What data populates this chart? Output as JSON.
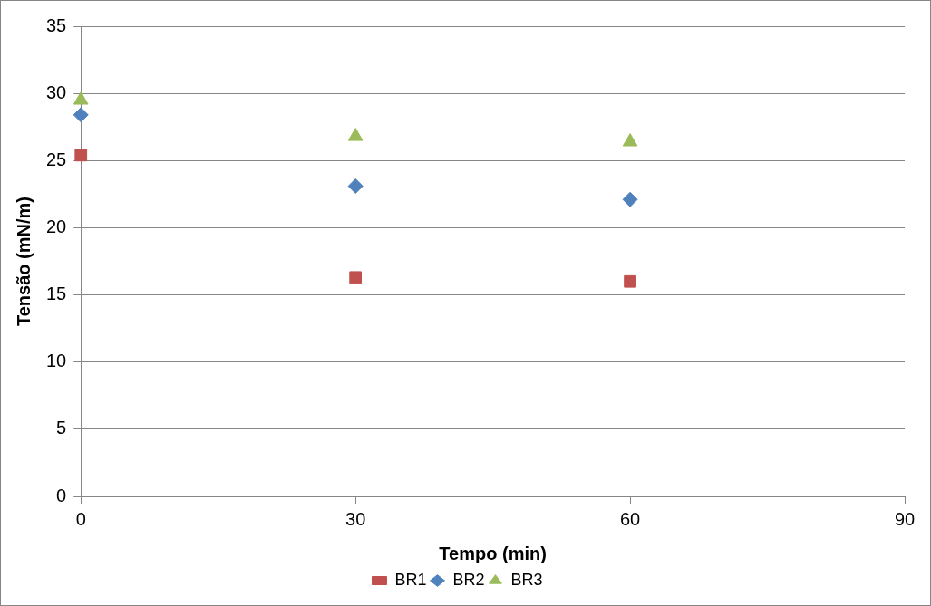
{
  "chart_data": {
    "type": "scatter",
    "xlabel": "Tempo (min)",
    "ylabel": "Tensão (mN/m)",
    "x": [
      0,
      30,
      60
    ],
    "series": [
      {
        "name": "BR1",
        "color": "#c0504d",
        "marker": "square",
        "values": [
          25.4,
          16.3,
          16.0
        ]
      },
      {
        "name": "BR2",
        "color": "#4f81bd",
        "marker": "diamond",
        "values": [
          28.4,
          23.1,
          22.1
        ]
      },
      {
        "name": "BR3",
        "color": "#9bbb59",
        "marker": "triangle",
        "values": [
          29.5,
          26.8,
          26.4
        ]
      }
    ],
    "xlim": [
      0,
      90
    ],
    "xticks": [
      0,
      30,
      60,
      90
    ],
    "ylim": [
      0,
      35
    ],
    "yticks": [
      0,
      5,
      10,
      15,
      20,
      25,
      30,
      35
    ],
    "grid": "y",
    "legend": "bottom"
  }
}
